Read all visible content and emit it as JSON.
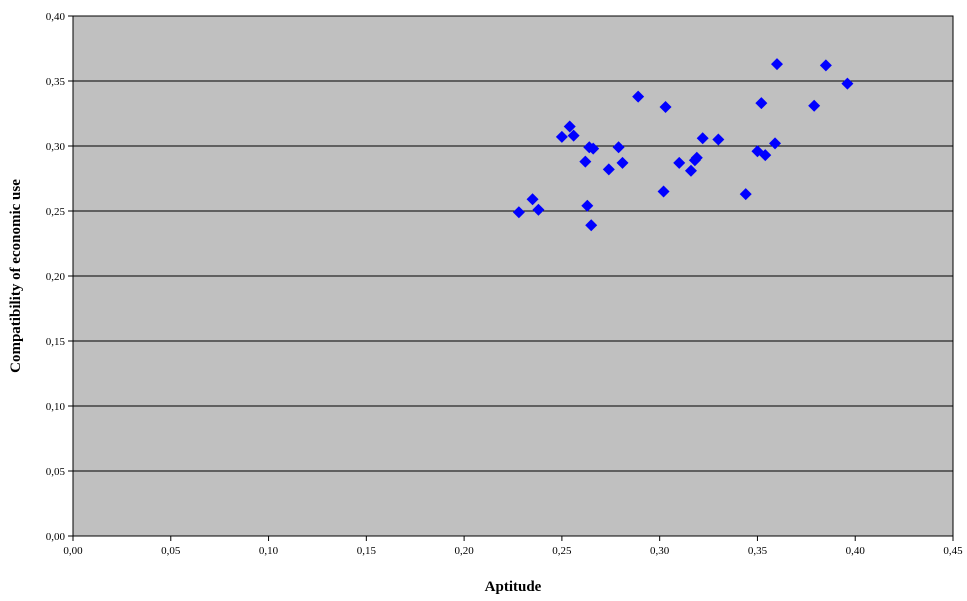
{
  "chart_data": {
    "type": "scatter",
    "xlabel": "Aptitude",
    "ylabel": "Compatibility of economic use",
    "xlim": [
      0,
      0.45
    ],
    "ylim": [
      0,
      0.4
    ],
    "x_ticks": [
      0,
      0.05,
      0.1,
      0.15,
      0.2,
      0.25,
      0.3,
      0.35,
      0.4,
      0.45
    ],
    "y_ticks": [
      0,
      0.05,
      0.1,
      0.15,
      0.2,
      0.25,
      0.3,
      0.35,
      0.4
    ],
    "x_tick_labels": [
      "0,00",
      "0,05",
      "0,10",
      "0,15",
      "0,20",
      "0,25",
      "0,30",
      "0,35",
      "0,40",
      "0,45"
    ],
    "y_tick_labels": [
      "0,00",
      "0,05",
      "0,10",
      "0,15",
      "0,20",
      "0,25",
      "0,30",
      "0,35",
      "0,40"
    ],
    "grid": "horizontal",
    "legend": "none",
    "marker": "diamond",
    "colors": {
      "marker": "#0000ff",
      "plot_bg": "#c0c0c0",
      "grid": "#000000"
    },
    "points": [
      [
        0.228,
        0.249
      ],
      [
        0.235,
        0.259
      ],
      [
        0.238,
        0.251
      ],
      [
        0.25,
        0.307
      ],
      [
        0.254,
        0.315
      ],
      [
        0.256,
        0.308
      ],
      [
        0.262,
        0.288
      ],
      [
        0.263,
        0.254
      ],
      [
        0.264,
        0.299
      ],
      [
        0.265,
        0.239
      ],
      [
        0.266,
        0.298
      ],
      [
        0.274,
        0.282
      ],
      [
        0.279,
        0.299
      ],
      [
        0.281,
        0.287
      ],
      [
        0.289,
        0.338
      ],
      [
        0.302,
        0.265
      ],
      [
        0.303,
        0.33
      ],
      [
        0.31,
        0.287
      ],
      [
        0.316,
        0.281
      ],
      [
        0.318,
        0.289
      ],
      [
        0.319,
        0.291
      ],
      [
        0.322,
        0.306
      ],
      [
        0.33,
        0.305
      ],
      [
        0.344,
        0.263
      ],
      [
        0.35,
        0.296
      ],
      [
        0.352,
        0.333
      ],
      [
        0.354,
        0.293
      ],
      [
        0.359,
        0.302
      ],
      [
        0.36,
        0.363
      ],
      [
        0.379,
        0.331
      ],
      [
        0.385,
        0.362
      ],
      [
        0.396,
        0.348
      ]
    ]
  }
}
